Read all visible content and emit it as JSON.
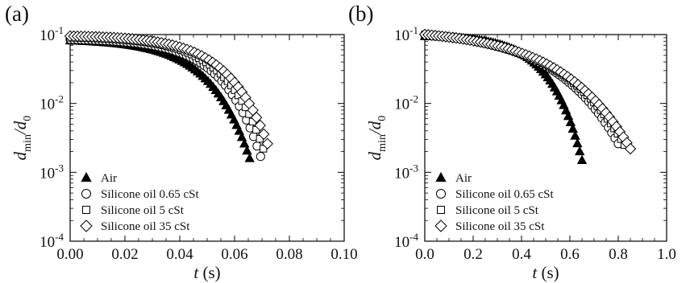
{
  "chart_data": [
    {
      "panel_label": "(a)",
      "type": "scatter",
      "xlabel": "t",
      "xunit": "(s)",
      "ylabel": "d_min/d_0",
      "xlim": [
        0.0,
        0.1
      ],
      "ylim": [
        0.0001,
        0.1
      ],
      "yscale": "log",
      "xticks": [
        "0.00",
        "0.02",
        "0.04",
        "0.06",
        "0.08",
        "0.10"
      ],
      "yticks": [
        {
          "base": "10",
          "exp": "-4"
        },
        {
          "base": "10",
          "exp": "-3"
        },
        {
          "base": "10",
          "exp": "-2"
        },
        {
          "base": "10",
          "exp": "-1"
        }
      ],
      "grid": false,
      "legend_position": "bottom-left",
      "series": [
        {
          "name": "Air",
          "marker": "triangle-filled",
          "t0": 0.0,
          "t_end": 0.0655,
          "y0": 0.082,
          "y_end": 0.0016,
          "bend": 4.5,
          "n": 70
        },
        {
          "name": "Silicone oil 0.65 cSt",
          "marker": "circle-open",
          "t0": 0.0,
          "t_end": 0.0695,
          "y0": 0.085,
          "y_end": 0.0017,
          "bend": 5.0,
          "n": 55
        },
        {
          "name": "Silicone oil 5 cSt",
          "marker": "square-open",
          "t0": 0.0,
          "t_end": 0.0705,
          "y0": 0.09,
          "y_end": 0.0022,
          "bend": 5.0,
          "n": 55
        },
        {
          "name": "Silicone oil 35 cSt",
          "marker": "diamond-open",
          "t0": 0.0,
          "t_end": 0.072,
          "y0": 0.095,
          "y_end": 0.0026,
          "bend": 5.0,
          "n": 55
        }
      ]
    },
    {
      "panel_label": "(b)",
      "type": "scatter",
      "xlabel": "t",
      "xunit": "(s)",
      "ylabel": "d_min/d_0",
      "xlim": [
        0.0,
        1.0
      ],
      "ylim": [
        0.0001,
        0.1
      ],
      "yscale": "log",
      "xticks": [
        "0.0",
        "0.2",
        "0.4",
        "0.6",
        "0.8",
        "1.0"
      ],
      "yticks": [
        {
          "base": "10",
          "exp": "-4"
        },
        {
          "base": "10",
          "exp": "-3"
        },
        {
          "base": "10",
          "exp": "-2"
        },
        {
          "base": "10",
          "exp": "-1"
        }
      ],
      "grid": false,
      "legend_position": "bottom-left",
      "series": [
        {
          "name": "Air",
          "marker": "triangle-filled",
          "t0": 0.0,
          "t_end": 0.65,
          "y0": 0.095,
          "y_end": 0.0015,
          "bend": 5.0,
          "n": 70
        },
        {
          "name": "Silicone oil 0.65 cSt",
          "marker": "circle-open",
          "t0": 0.0,
          "t_end": 0.8,
          "y0": 0.1,
          "y_end": 0.0026,
          "bend": 3.0,
          "n": 60
        },
        {
          "name": "Silicone oil 5 cSt",
          "marker": "square-open",
          "t0": 0.0,
          "t_end": 0.825,
          "y0": 0.1,
          "y_end": 0.0025,
          "bend": 3.0,
          "n": 60
        },
        {
          "name": "Silicone oil 35 cSt",
          "marker": "diamond-open",
          "t0": 0.0,
          "t_end": 0.85,
          "y0": 0.1,
          "y_end": 0.0022,
          "bend": 3.0,
          "n": 60
        }
      ]
    }
  ]
}
